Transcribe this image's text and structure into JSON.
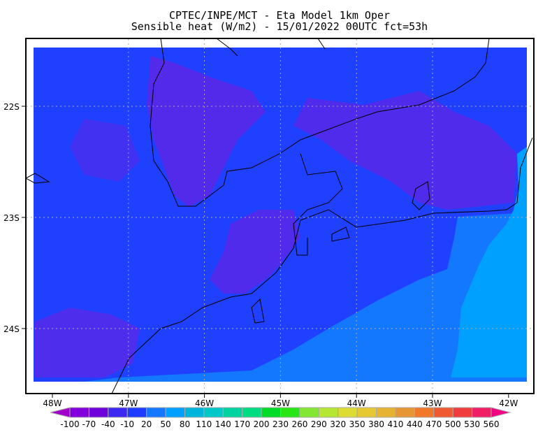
{
  "title": {
    "line1": "CPTEC/INPE/MCT -  Eta Model 1km Oper",
    "line2": "Sensible heat (W/m2) - 15/01/2022 00UTC fct=53h"
  },
  "axes": {
    "lon_labels": [
      "48W",
      "47W",
      "46W",
      "45W",
      "44W",
      "43W",
      "42W"
    ],
    "lat_labels": [
      "22S",
      "23S",
      "24S"
    ]
  },
  "colorbar": {
    "labels": [
      "-100",
      "-70",
      "-40",
      "-10",
      "20",
      "50",
      "80",
      "110",
      "140",
      "170",
      "200",
      "230",
      "260",
      "290",
      "320",
      "350",
      "380",
      "410",
      "440",
      "470",
      "500",
      "530",
      "560"
    ],
    "colors": [
      "#a000c8",
      "#8200dc",
      "#6e00dc",
      "#3c28f0",
      "#1e3cff",
      "#1478ff",
      "#00a0ff",
      "#00b4dc",
      "#00c8c8",
      "#00d2a0",
      "#00dc82",
      "#00dc28",
      "#28e614",
      "#82e632",
      "#b4e632",
      "#dcdc32",
      "#e6c832",
      "#e6b432",
      "#e69632",
      "#f07828",
      "#f05a32",
      "#f03c3c",
      "#f01e64",
      "#f00082"
    ]
  },
  "map_colors": {
    "land_base": "#2040ff",
    "land_low": "#5a28e8",
    "ocean_near": "#1478ff",
    "ocean_far": "#00a0ff"
  }
}
